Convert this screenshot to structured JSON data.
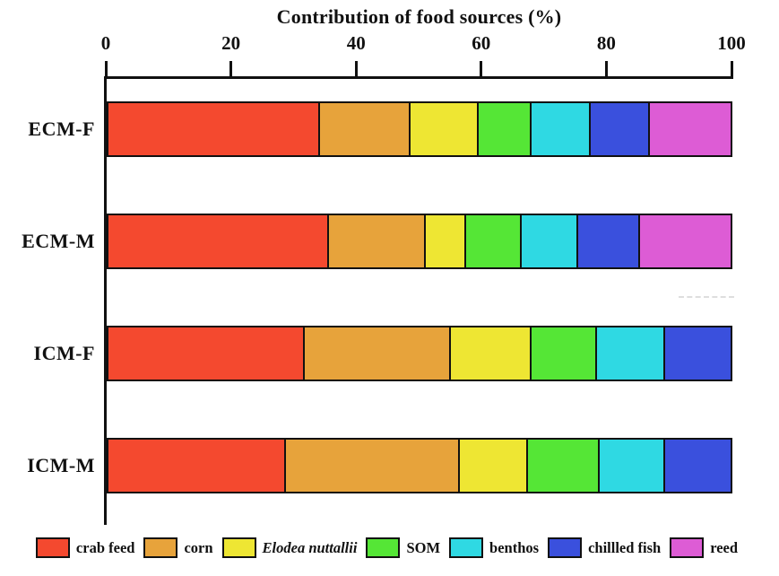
{
  "title": "Contribution of food sources (%)",
  "chart_data": {
    "type": "bar",
    "orientation": "horizontal",
    "stacked": true,
    "title": "Contribution of food sources (%)",
    "xlabel": "Contribution of food sources (%)",
    "ylabel": "",
    "categories": [
      "ECM-F",
      "ECM-M",
      "ICM-F",
      "ICM-M"
    ],
    "series": [
      {
        "name": "crab feed",
        "color": "#f4492f",
        "italic": false,
        "values": [
          34,
          35.5,
          31.5,
          28.5
        ]
      },
      {
        "name": "corn",
        "color": "#e7a33b",
        "italic": false,
        "values": [
          14.5,
          15.5,
          23.5,
          28
        ]
      },
      {
        "name": "Elodea nuttallii",
        "color": "#eee633",
        "italic": true,
        "values": [
          11,
          6.5,
          13,
          11
        ]
      },
      {
        "name": "SOM",
        "color": "#55e636",
        "italic": false,
        "values": [
          8.5,
          9,
          10.5,
          11.5
        ]
      },
      {
        "name": "benthos",
        "color": "#2fd9e3",
        "italic": false,
        "values": [
          9.5,
          9,
          11,
          10.5
        ]
      },
      {
        "name": "chillled fish",
        "color": "#3a50dd",
        "italic": false,
        "values": [
          9.5,
          10,
          10.5,
          10.5
        ]
      },
      {
        "name": "reed",
        "color": "#dd5cd5",
        "italic": false,
        "values": [
          13,
          14.5,
          0,
          0
        ]
      }
    ],
    "x_ticks": [
      0,
      20,
      40,
      60,
      80,
      100
    ],
    "xlim": [
      0,
      100
    ],
    "grid": false,
    "legend_position": "bottom"
  },
  "styles": {
    "bar_border_color": "#111111",
    "axis_color": "#111111",
    "text_color": "#111111",
    "background": "#ffffff"
  }
}
